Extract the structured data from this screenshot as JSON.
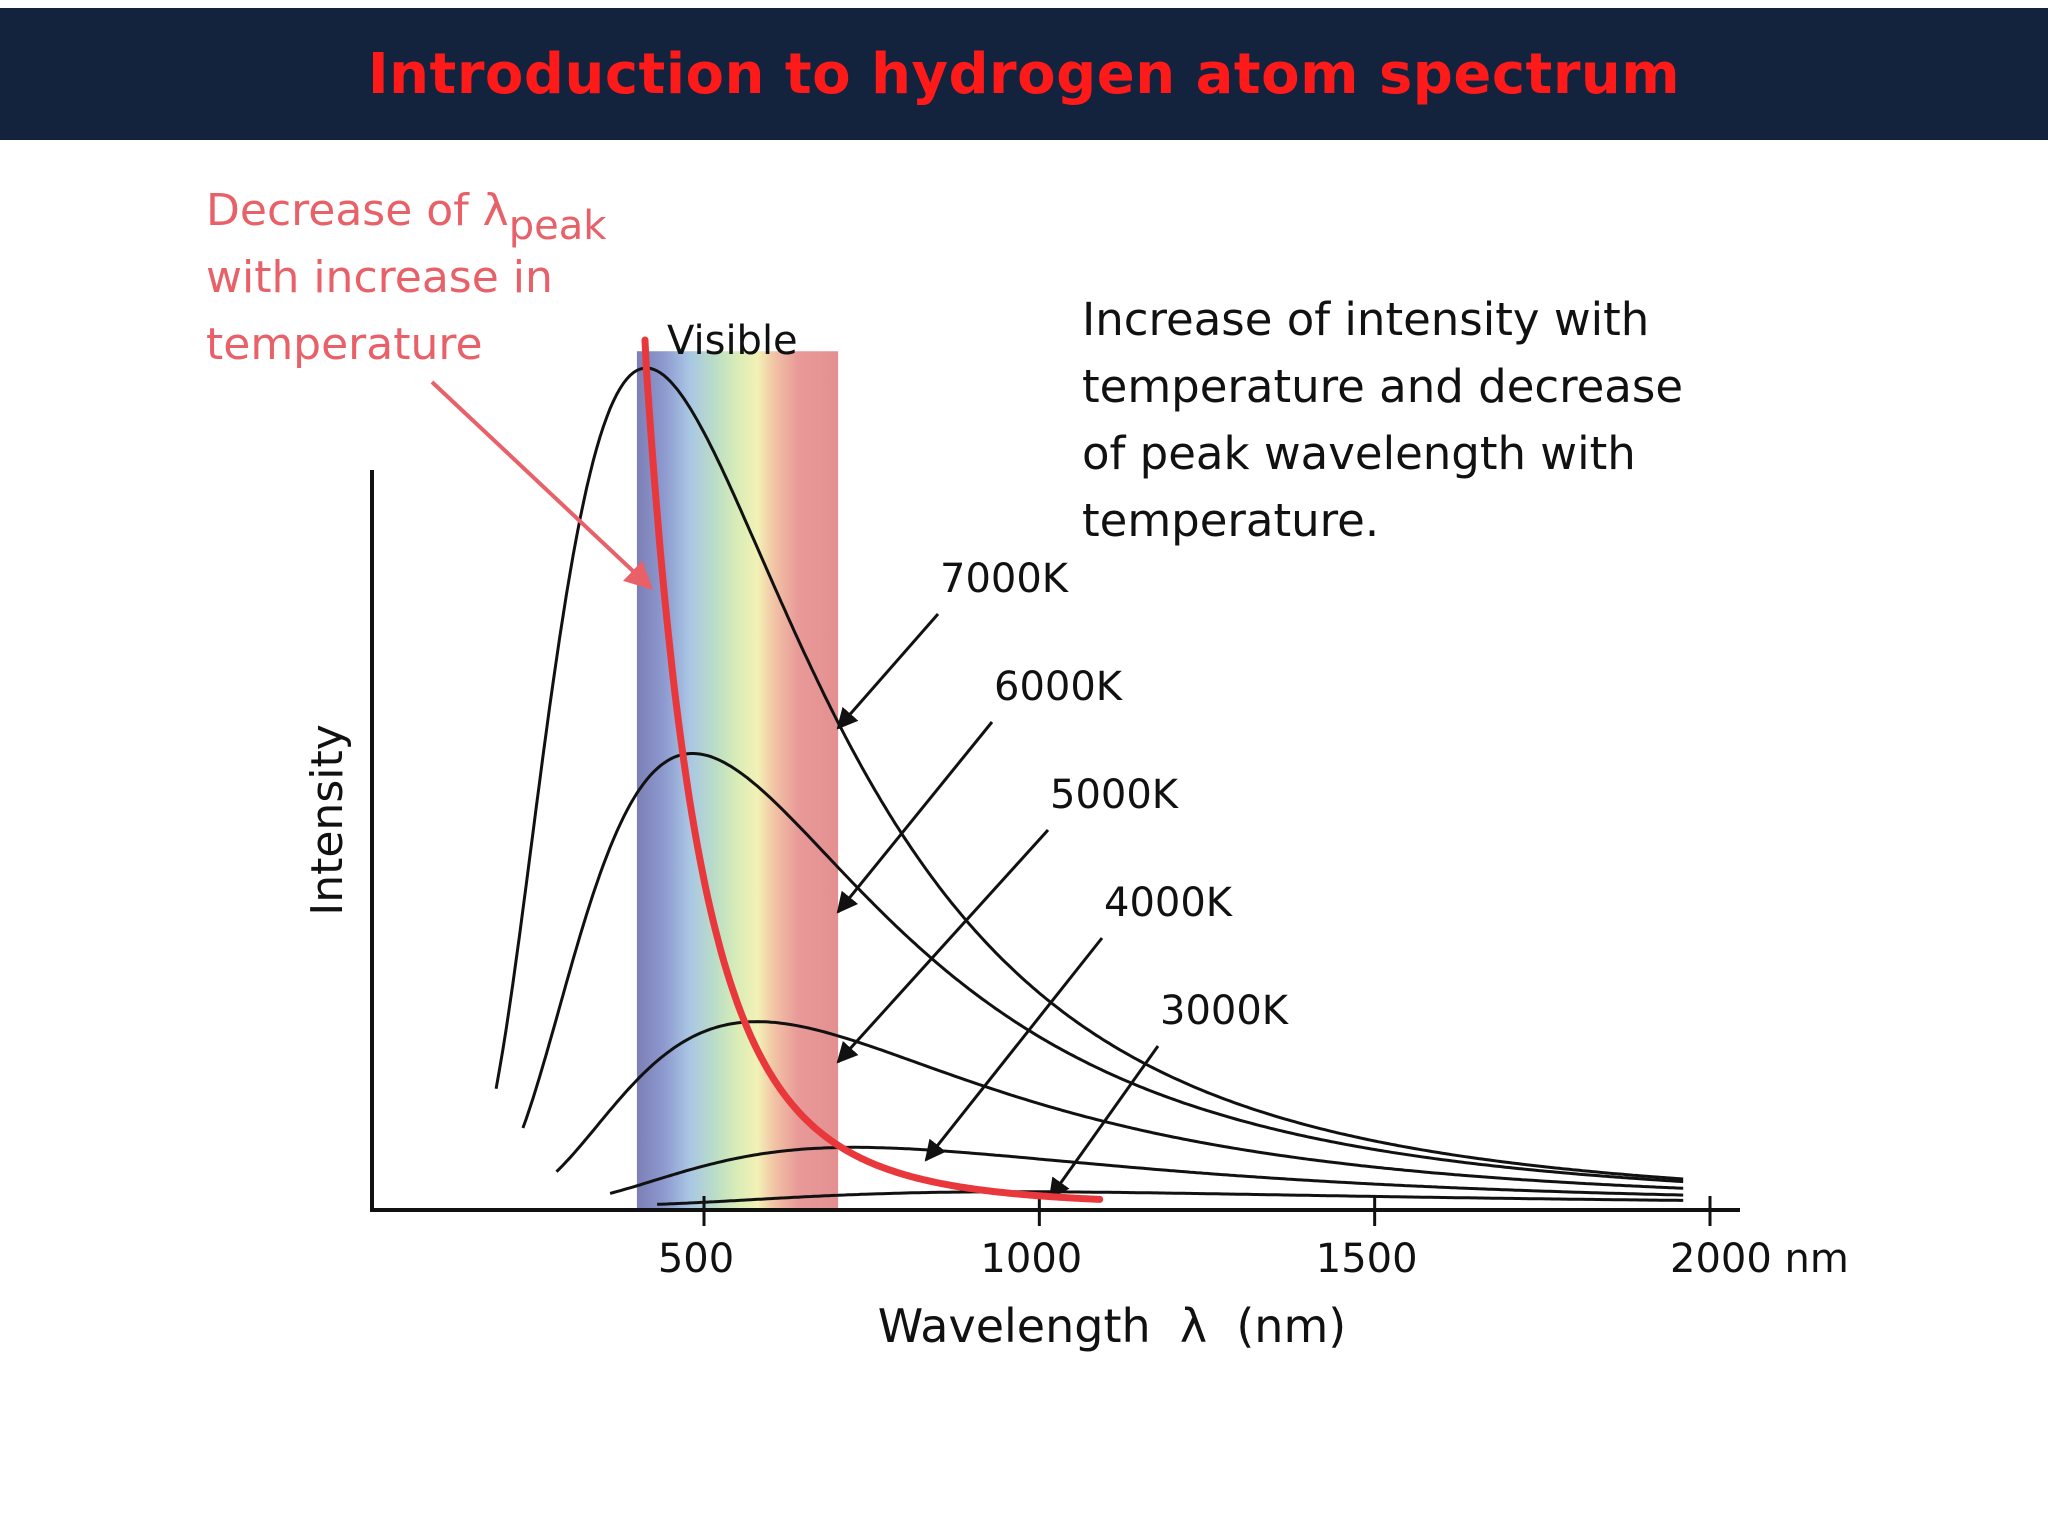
{
  "slide": {
    "title": "Introduction to hydrogen atom spectrum"
  },
  "colors": {
    "header_bg": "#13233e",
    "title": "#ff1a1a",
    "peak_curve": "#e8383c",
    "annotation": "#e86068"
  },
  "annotations": {
    "peak_line": [
      "Decrease of λ",
      "peak",
      "with increase in",
      "temperature"
    ],
    "description": [
      "Increase of intensity with",
      "temperature and decrease",
      "of peak wavelength with",
      "temperature."
    ],
    "visible": "Visible"
  },
  "chart_data": {
    "type": "line",
    "xlabel": "Wavelength  λ  (nm)",
    "ylabel": "Intensity",
    "xlim": [
      200,
      2050
    ],
    "ylim": [
      0,
      1.16
    ],
    "x_ticks": [
      500,
      1000,
      1500,
      2000
    ],
    "x_tick_labels": [
      "500",
      "1000",
      "1500",
      "2000 nm"
    ],
    "visible_band_nm": [
      400,
      700
    ],
    "series": [
      {
        "name": "7000K",
        "peak_nm": 414,
        "peak_intensity": 1.0
      },
      {
        "name": "6000K",
        "peak_nm": 483,
        "peak_intensity": 0.54
      },
      {
        "name": "5000K",
        "peak_nm": 580,
        "peak_intensity": 0.22
      },
      {
        "name": "4000K",
        "peak_nm": 725,
        "peak_intensity": 0.07
      },
      {
        "name": "3000K",
        "peak_nm": 966,
        "peak_intensity": 0.017
      }
    ]
  }
}
